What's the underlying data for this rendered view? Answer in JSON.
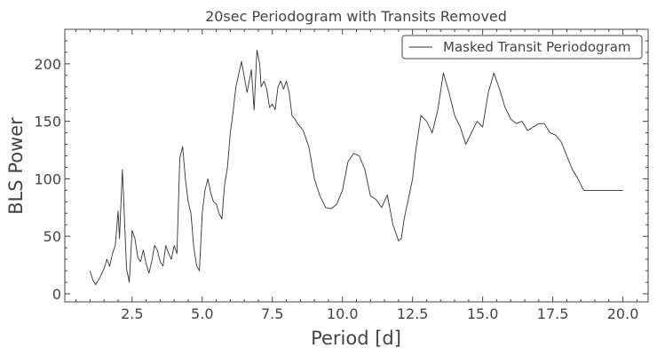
{
  "chart_data": {
    "type": "line",
    "title": "20sec Periodogram with Transits Removed",
    "xlabel": "Period [d]",
    "ylabel": "BLS Power",
    "xlim": [
      0.1,
      20.9
    ],
    "ylim": [
      -7,
      230
    ],
    "x_ticks": [
      2.5,
      5.0,
      7.5,
      10.0,
      12.5,
      15.0,
      17.5,
      20.0
    ],
    "x_tick_labels": [
      "2.5",
      "5.0",
      "7.5",
      "10.0",
      "12.5",
      "15.0",
      "17.5",
      "20.0"
    ],
    "y_ticks": [
      0,
      50,
      100,
      150,
      200
    ],
    "y_tick_labels": [
      "0",
      "50",
      "100",
      "150",
      "200"
    ],
    "grid": false,
    "legend_position": "top-right",
    "series": [
      {
        "name": "Masked Transit Periodogram",
        "color": "#333333",
        "x": [
          1.0,
          1.1,
          1.2,
          1.35,
          1.5,
          1.6,
          1.7,
          1.8,
          1.9,
          2.0,
          2.05,
          2.15,
          2.2,
          2.3,
          2.4,
          2.5,
          2.6,
          2.7,
          2.8,
          2.9,
          3.0,
          3.1,
          3.2,
          3.3,
          3.4,
          3.5,
          3.6,
          3.7,
          3.8,
          3.9,
          4.0,
          4.1,
          4.2,
          4.3,
          4.4,
          4.5,
          4.6,
          4.7,
          4.8,
          4.9,
          5.0,
          5.1,
          5.2,
          5.3,
          5.4,
          5.5,
          5.6,
          5.7,
          5.8,
          5.9,
          6.0,
          6.1,
          6.2,
          6.4,
          6.6,
          6.75,
          6.85,
          6.95,
          7.05,
          7.1,
          7.2,
          7.3,
          7.4,
          7.5,
          7.6,
          7.7,
          7.8,
          7.9,
          8.0,
          8.1,
          8.2,
          8.3,
          8.4,
          8.6,
          8.8,
          9.0,
          9.2,
          9.4,
          9.6,
          9.8,
          10.0,
          10.2,
          10.4,
          10.6,
          10.8,
          11.0,
          11.2,
          11.4,
          11.6,
          11.8,
          12.0,
          12.1,
          12.2,
          12.35,
          12.5,
          12.6,
          12.8,
          13.0,
          13.2,
          13.4,
          13.6,
          13.8,
          14.0,
          14.2,
          14.4,
          14.6,
          14.8,
          15.0,
          15.2,
          15.4,
          15.6,
          15.8,
          16.0,
          16.2,
          16.4,
          16.6,
          16.8,
          17.0,
          17.2,
          17.4,
          17.6,
          17.8,
          18.0,
          18.2,
          18.4,
          18.6,
          19.0,
          19.5,
          20.0
        ],
        "y": [
          20,
          12,
          8,
          14,
          22,
          30,
          24,
          35,
          42,
          72,
          48,
          108,
          82,
          22,
          10,
          55,
          48,
          32,
          28,
          38,
          26,
          18,
          28,
          42,
          38,
          28,
          24,
          42,
          35,
          30,
          42,
          35,
          118,
          128,
          100,
          80,
          70,
          40,
          24,
          20,
          70,
          90,
          100,
          88,
          80,
          78,
          70,
          65,
          95,
          110,
          140,
          158,
          180,
          202,
          175,
          195,
          160,
          212,
          200,
          180,
          185,
          178,
          162,
          165,
          160,
          180,
          185,
          178,
          185,
          175,
          155,
          152,
          148,
          142,
          128,
          100,
          85,
          75,
          74,
          78,
          90,
          115,
          122,
          120,
          108,
          85,
          82,
          75,
          86,
          60,
          46,
          48,
          65,
          82,
          100,
          122,
          155,
          150,
          140,
          160,
          192,
          175,
          155,
          145,
          130,
          140,
          150,
          145,
          175,
          192,
          178,
          162,
          152,
          148,
          150,
          142,
          145,
          148,
          148,
          140,
          138,
          132,
          120,
          108,
          100,
          90,
          90,
          90,
          90
        ]
      }
    ]
  }
}
